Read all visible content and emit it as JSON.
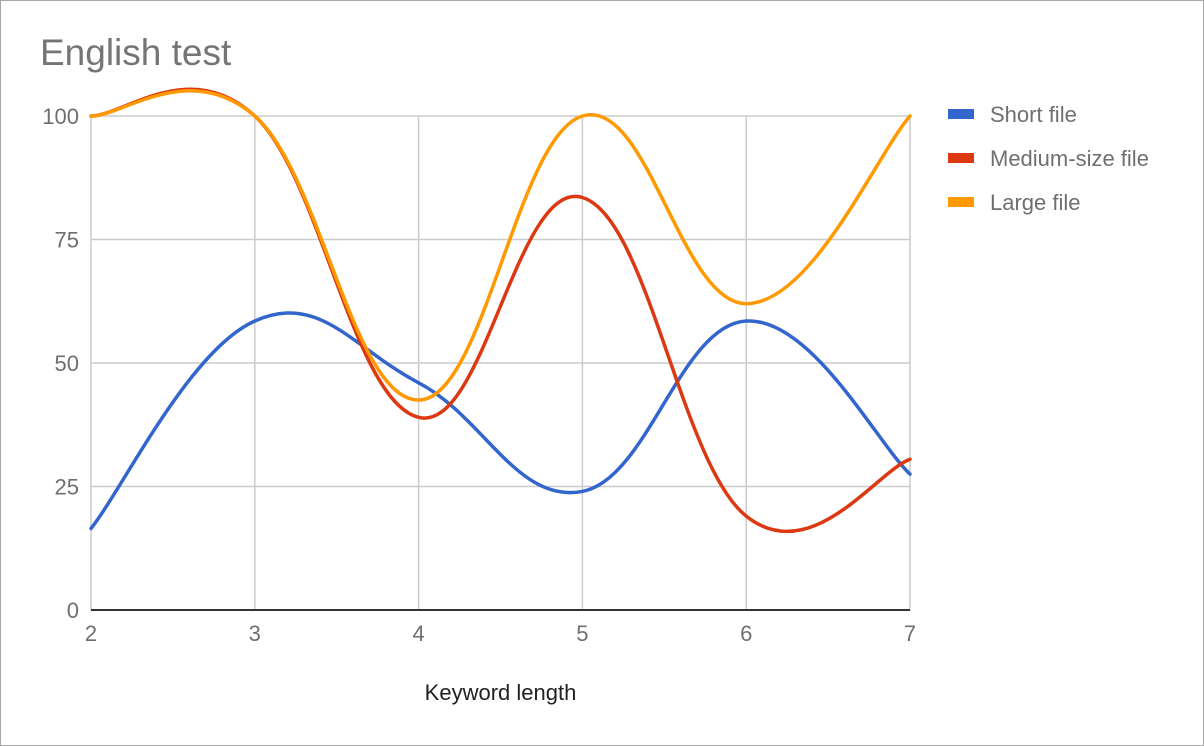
{
  "chart_data": {
    "type": "line",
    "title": "English test",
    "xlabel": "Keyword length",
    "ylabel": "",
    "x": [
      2,
      3,
      4,
      5,
      6,
      7
    ],
    "xlim": [
      2,
      7
    ],
    "ylim": [
      0,
      100
    ],
    "x_ticks": [
      "2",
      "3",
      "4",
      "5",
      "6",
      "7"
    ],
    "y_ticks": [
      "0",
      "25",
      "50",
      "75",
      "100"
    ],
    "grid": true,
    "smooth": true,
    "legend_position": "right",
    "series": [
      {
        "name": "Short file",
        "color": "#3366cc",
        "values": [
          16.5,
          58.5,
          46,
          24,
          58.5,
          27.5
        ]
      },
      {
        "name": "Medium-size file",
        "color": "#dc3912",
        "values": [
          100,
          100,
          39,
          83.5,
          19,
          30.5
        ]
      },
      {
        "name": "Large file",
        "color": "#ff9900",
        "values": [
          100,
          100,
          42.5,
          100,
          62,
          100
        ]
      }
    ]
  }
}
